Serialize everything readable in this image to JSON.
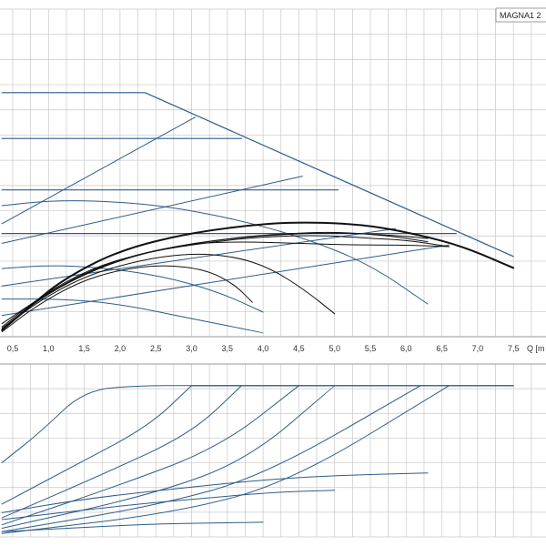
{
  "model_badge": "MAGNA1 2",
  "x_axis_label": "Q [m",
  "colors": {
    "grid": "#c8c8c8",
    "blue": "#2c5c8a",
    "black": "#111111",
    "text": "#333333"
  },
  "chart_data": [
    {
      "type": "line",
      "name": "head-curves",
      "x_ticks": [
        "0.5",
        "1.0",
        "1.5",
        "2.0",
        "2.5",
        "3.0",
        "3.5",
        "4.0",
        "4.5",
        "5.0",
        "5.5",
        "6.0",
        "6.5",
        "7.0",
        "7.5"
      ],
      "xlim": [
        0.35,
        7.9
      ],
      "ylim": [
        0,
        1
      ],
      "grid": true,
      "series": [
        {
          "color": "blue",
          "width": 1.2,
          "points": [
            [
              0.35,
              0.745
            ],
            [
              2.35,
              0.745
            ],
            [
              7.5,
              0.245
            ]
          ]
        },
        {
          "color": "blue",
          "width": 1.2,
          "points": [
            [
              0.35,
              0.605
            ],
            [
              3.7,
              0.605
            ]
          ]
        },
        {
          "color": "blue",
          "width": 1.2,
          "points": [
            [
              0.35,
              0.448
            ],
            [
              5.05,
              0.448
            ]
          ]
        },
        {
          "color": "blue",
          "width": 1.2,
          "points": [
            [
              0.35,
              0.315
            ],
            [
              6.7,
              0.315
            ]
          ]
        },
        {
          "color": "blue",
          "width": 1.0,
          "points": [
            [
              0.35,
              0.345
            ],
            [
              3.05,
              0.67
            ]
          ]
        },
        {
          "color": "blue",
          "width": 1.0,
          "points": [
            [
              0.35,
              0.285
            ],
            [
              4.55,
              0.49
            ]
          ]
        },
        {
          "color": "blue",
          "width": 1.0,
          "points": [
            [
              0.35,
              0.155
            ],
            [
              5.85,
              0.33
            ]
          ]
        },
        {
          "color": "blue",
          "width": 1.0,
          "points": [
            [
              0.35,
              0.065
            ],
            [
              6.6,
              0.28
            ]
          ]
        },
        {
          "color": "blue",
          "width": 1.0,
          "points": [
            [
              0.35,
              0.4
            ],
            [
              1.0,
              0.415
            ],
            [
              1.7,
              0.415
            ],
            [
              2.6,
              0.4
            ],
            [
              3.6,
              0.36
            ],
            [
              4.6,
              0.3
            ],
            [
              5.5,
              0.22
            ],
            [
              6.3,
              0.1
            ]
          ]
        },
        {
          "color": "blue",
          "width": 1.0,
          "points": [
            [
              0.35,
              0.208
            ],
            [
              1.0,
              0.218
            ],
            [
              1.7,
              0.212
            ],
            [
              2.6,
              0.185
            ],
            [
              3.4,
              0.135
            ],
            [
              4.0,
              0.075
            ]
          ]
        },
        {
          "color": "blue",
          "width": 1.0,
          "points": [
            [
              0.35,
              0.115
            ],
            [
              1.2,
              0.115
            ],
            [
              2.0,
              0.1
            ],
            [
              3.0,
              0.055
            ],
            [
              4.0,
              0.012
            ]
          ]
        },
        {
          "color": "black",
          "width": 2.0,
          "points": [
            [
              0.35,
              0.02
            ],
            [
              0.7,
              0.085
            ],
            [
              1.2,
              0.175
            ],
            [
              2.0,
              0.265
            ],
            [
              3.0,
              0.318
            ],
            [
              4.0,
              0.345
            ],
            [
              4.7,
              0.35
            ],
            [
              5.5,
              0.34
            ],
            [
              6.2,
              0.31
            ],
            [
              6.8,
              0.275
            ],
            [
              7.5,
              0.21
            ]
          ]
        },
        {
          "color": "black",
          "width": 1.0,
          "points": [
            [
              0.35,
              0.025
            ],
            [
              0.9,
              0.12
            ],
            [
              1.5,
              0.195
            ],
            [
              2.2,
              0.25
            ],
            [
              3.0,
              0.285
            ],
            [
              3.7,
              0.29
            ],
            [
              4.5,
              0.285
            ],
            [
              5.2,
              0.28
            ],
            [
              6.0,
              0.28
            ],
            [
              6.6,
              0.275
            ]
          ]
        },
        {
          "color": "black",
          "width": 1.0,
          "points": [
            [
              0.35,
              0.03
            ],
            [
              0.9,
              0.125
            ],
            [
              1.6,
              0.21
            ],
            [
              2.4,
              0.26
            ],
            [
              3.3,
              0.29
            ],
            [
              4.0,
              0.305
            ],
            [
              4.8,
              0.31
            ],
            [
              5.5,
              0.3
            ],
            [
              6.0,
              0.295
            ],
            [
              6.6,
              0.275
            ]
          ]
        },
        {
          "color": "black",
          "width": 1.0,
          "points": [
            [
              0.35,
              0.025
            ],
            [
              1.0,
              0.135
            ],
            [
              1.8,
              0.22
            ],
            [
              2.6,
              0.27
            ],
            [
              3.5,
              0.3
            ],
            [
              4.3,
              0.315
            ],
            [
              5.0,
              0.32
            ],
            [
              5.7,
              0.31
            ],
            [
              6.3,
              0.29
            ]
          ]
        },
        {
          "color": "black",
          "width": 1.0,
          "points": [
            [
              0.35,
              0.02
            ],
            [
              0.8,
              0.1
            ],
            [
              1.5,
              0.185
            ],
            [
              2.3,
              0.235
            ],
            [
              3.0,
              0.255
            ],
            [
              3.6,
              0.245
            ],
            [
              4.1,
              0.21
            ],
            [
              4.6,
              0.14
            ],
            [
              5.0,
              0.07
            ]
          ]
        },
        {
          "color": "black",
          "width": 1.0,
          "points": [
            [
              0.35,
              0.015
            ],
            [
              0.8,
              0.09
            ],
            [
              1.4,
              0.165
            ],
            [
              2.0,
              0.205
            ],
            [
              2.6,
              0.22
            ],
            [
              3.2,
              0.205
            ],
            [
              3.6,
              0.16
            ],
            [
              3.85,
              0.105
            ]
          ]
        },
        {
          "color": "black",
          "width": 1.0,
          "points": [
            [
              0.35,
              0.04
            ],
            [
              1.1,
              0.15
            ],
            [
              2.0,
              0.24
            ],
            [
              3.0,
              0.285
            ],
            [
              4.0,
              0.31
            ],
            [
              5.0,
              0.318
            ],
            [
              5.8,
              0.31
            ],
            [
              6.3,
              0.3
            ]
          ]
        }
      ]
    },
    {
      "type": "line",
      "name": "power-curves",
      "xlim": [
        0.35,
        7.9
      ],
      "ylim": [
        0,
        1
      ],
      "grid": true,
      "series": [
        {
          "color": "blue",
          "width": 1.3,
          "points": [
            [
              3.0,
              0.875
            ],
            [
              7.5,
              0.875
            ]
          ]
        },
        {
          "color": "blue",
          "width": 1.0,
          "points": [
            [
              0.35,
              0.43
            ],
            [
              0.9,
              0.61
            ],
            [
              1.5,
              0.85
            ],
            [
              2.3,
              0.875
            ],
            [
              3.0,
              0.875
            ]
          ]
        },
        {
          "color": "blue",
          "width": 1.0,
          "points": [
            [
              0.35,
              0.19
            ],
            [
              1.4,
              0.42
            ],
            [
              2.4,
              0.64
            ],
            [
              3.0,
              0.875
            ]
          ]
        },
        {
          "color": "blue",
          "width": 1.0,
          "points": [
            [
              0.35,
              0.11
            ],
            [
              1.8,
              0.37
            ],
            [
              3.0,
              0.6
            ],
            [
              3.7,
              0.875
            ]
          ]
        },
        {
          "color": "blue",
          "width": 1.0,
          "points": [
            [
              0.35,
              0.07
            ],
            [
              2.0,
              0.3
            ],
            [
              3.4,
              0.52
            ],
            [
              4.5,
              0.875
            ]
          ]
        },
        {
          "color": "blue",
          "width": 1.0,
          "points": [
            [
              0.35,
              0.05
            ],
            [
              2.5,
              0.25
            ],
            [
              3.8,
              0.45
            ],
            [
              5.0,
              0.875
            ]
          ]
        },
        {
          "color": "blue",
          "width": 1.0,
          "points": [
            [
              0.35,
              0.03
            ],
            [
              2.5,
              0.18
            ],
            [
              4.0,
              0.35
            ],
            [
              6.2,
              0.875
            ]
          ]
        },
        {
          "color": "blue",
          "width": 1.0,
          "points": [
            [
              0.35,
              0.02
            ],
            [
              2.8,
              0.14
            ],
            [
              4.4,
              0.32
            ],
            [
              6.6,
              0.875
            ]
          ]
        },
        {
          "color": "blue",
          "width": 1.0,
          "points": [
            [
              0.35,
              0.14
            ],
            [
              1.5,
              0.22
            ],
            [
              2.8,
              0.28
            ],
            [
              4.0,
              0.33
            ],
            [
              5.0,
              0.355
            ],
            [
              6.3,
              0.37
            ]
          ]
        },
        {
          "color": "blue",
          "width": 1.0,
          "points": [
            [
              0.35,
              0.1
            ],
            [
              2.0,
              0.18
            ],
            [
              3.2,
              0.225
            ],
            [
              4.2,
              0.26
            ],
            [
              5.0,
              0.27
            ]
          ]
        },
        {
          "color": "blue",
          "width": 1.0,
          "points": [
            [
              0.35,
              0.03
            ],
            [
              1.5,
              0.055
            ],
            [
              2.5,
              0.075
            ],
            [
              3.3,
              0.08
            ],
            [
              4.0,
              0.085
            ]
          ]
        }
      ]
    }
  ]
}
